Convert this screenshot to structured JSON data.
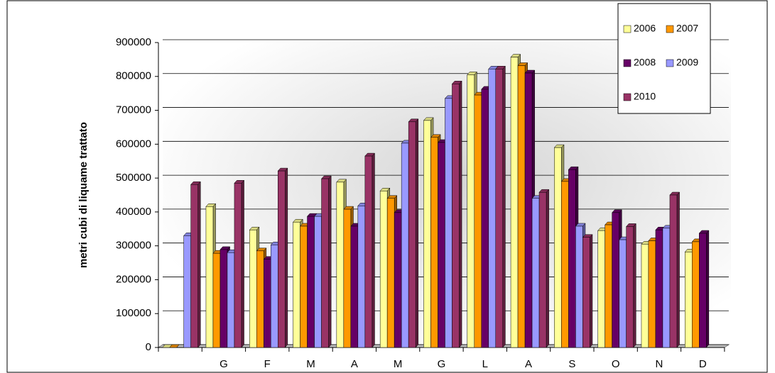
{
  "chart_data": {
    "type": "bar",
    "y_label": "metri cubi di liquame trattato",
    "categories": [
      null,
      "G",
      "F",
      "M",
      "A",
      "M",
      "G",
      "L",
      "A",
      "S",
      "O",
      "N",
      "D"
    ],
    "series": [
      {
        "name": "2006",
        "color": "#ffff99",
        "values": [
          0,
          416000,
          347000,
          370000,
          488000,
          462000,
          670000,
          805000,
          857000,
          590000,
          345000,
          305000,
          282000
        ]
      },
      {
        "name": "2007",
        "color": "#ff9900",
        "values": [
          0,
          278000,
          285000,
          358000,
          408000,
          440000,
          620000,
          745000,
          832000,
          490000,
          362000,
          315000,
          312000
        ]
      },
      {
        "name": "2008",
        "color": "#660066",
        "values": [
          null,
          289000,
          260000,
          387000,
          358000,
          398000,
          605000,
          762000,
          810000,
          525000,
          398000,
          347000,
          337000
        ]
      },
      {
        "name": "2009",
        "color": "#9999ff",
        "values": [
          330000,
          280000,
          303000,
          387000,
          418000,
          603000,
          735000,
          822000,
          440000,
          358000,
          318000,
          352000,
          null
        ]
      },
      {
        "name": "2010",
        "color": "#993366",
        "values": [
          481000,
          485000,
          521000,
          498000,
          565000,
          666000,
          778000,
          822000,
          458000,
          325000,
          357000,
          450000,
          null
        ]
      }
    ],
    "ylim": [
      0,
      900000
    ],
    "yticks": [
      0,
      100000,
      200000,
      300000,
      400000,
      500000,
      600000,
      700000,
      800000,
      900000
    ],
    "grid": true,
    "legend": "upper right"
  }
}
